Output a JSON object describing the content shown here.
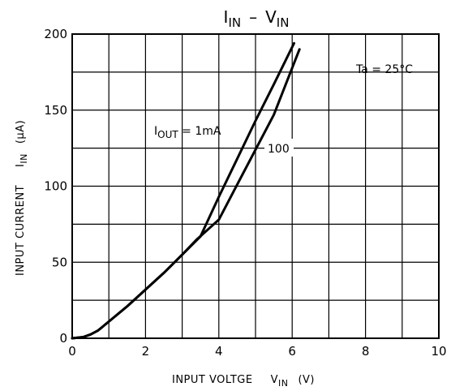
{
  "chart_data": {
    "type": "line",
    "title": {
      "main": "I",
      "sub1": "IN",
      "dash": "–",
      "main2": "V",
      "sub2": "IN"
    },
    "xlabel": {
      "text": "INPUT  VOLTGE",
      "symbol": "V",
      "sub": "IN",
      "unit": "(V)"
    },
    "ylabel": {
      "text": "INPUT  CURRENT",
      "symbol": "I",
      "sub": "IN",
      "unit": "(μA)"
    },
    "xlim": [
      0,
      10
    ],
    "ylim": [
      0,
      200
    ],
    "x_ticks": [
      "0",
      "2",
      "4",
      "6",
      "8",
      "10"
    ],
    "y_ticks": [
      "0",
      "50",
      "100",
      "150",
      "200"
    ],
    "grid": true,
    "condition": "Ta = 25°C",
    "series": [
      {
        "name": {
          "main": "I",
          "sub": "OUT",
          "rest": " = 1mA"
        },
        "x": [
          0,
          0.3,
          0.5,
          0.7,
          1.0,
          1.5,
          2.0,
          2.5,
          3.0,
          3.5,
          4.0,
          4.5,
          5.0,
          5.5,
          6.05
        ],
        "y": [
          0,
          0.8,
          2.5,
          5,
          11,
          21,
          32,
          43,
          55,
          67,
          93,
          118,
          143,
          167,
          194
        ]
      },
      {
        "name": "100",
        "x": [
          0,
          0.3,
          0.5,
          0.7,
          1.0,
          1.5,
          2.0,
          2.5,
          3.0,
          3.4,
          4.0,
          4.5,
          5.0,
          5.5,
          6.2
        ],
        "y": [
          0,
          0.8,
          2.5,
          5,
          11,
          21,
          32,
          43,
          55,
          65,
          78,
          101,
          124,
          147,
          190
        ]
      }
    ]
  }
}
